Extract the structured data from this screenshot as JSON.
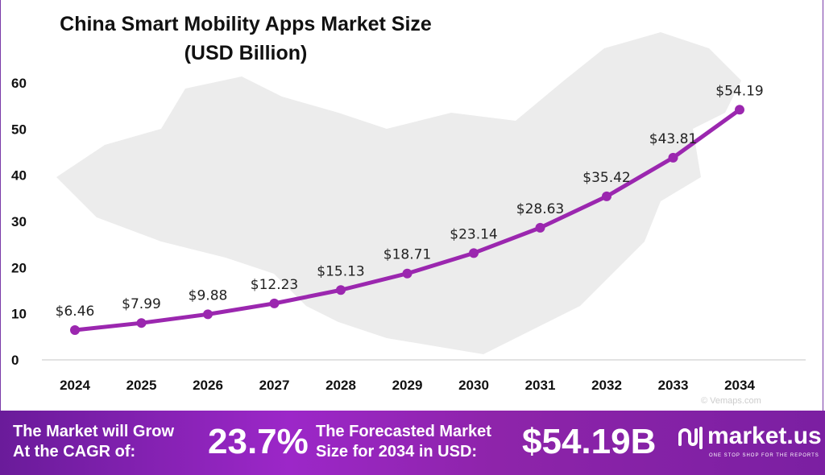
{
  "chart_data": {
    "type": "line",
    "title": "China Smart Mobility Apps Market Size (USD Billion)",
    "categories": [
      "2024",
      "2025",
      "2026",
      "2027",
      "2028",
      "2029",
      "2030",
      "2031",
      "2032",
      "2033",
      "2034"
    ],
    "values": [
      6.46,
      7.99,
      9.88,
      12.23,
      15.13,
      18.71,
      23.14,
      28.63,
      35.42,
      43.81,
      54.19
    ],
    "data_labels": [
      "$6.46",
      "$7.99",
      "$9.88",
      "$12.23",
      "$15.13",
      "$18.71",
      "$23.14",
      "$28.63",
      "$35.42",
      "$43.81",
      "$54.19"
    ],
    "yticks": [
      0,
      10,
      20,
      30,
      40,
      50,
      60
    ],
    "ylim": [
      0,
      60
    ],
    "grid": false,
    "legend": "none",
    "line_color": "#9b27af"
  },
  "title_line1": "China Smart Mobility Apps Market Size",
  "title_line2": "(USD Billion)",
  "watermark": "© Vemaps.com",
  "banner": {
    "cagr_label_1": "The Market will Grow",
    "cagr_label_2": "At the CAGR of:",
    "cagr_value": "23.7%",
    "forecast_label_1": "The Forecasted Market",
    "forecast_label_2": "Size for 2034 in USD:",
    "forecast_value": "$54.19B",
    "logo_text": "market.us",
    "logo_tagline": "ONE STOP SHOP FOR THE REPORTS"
  }
}
